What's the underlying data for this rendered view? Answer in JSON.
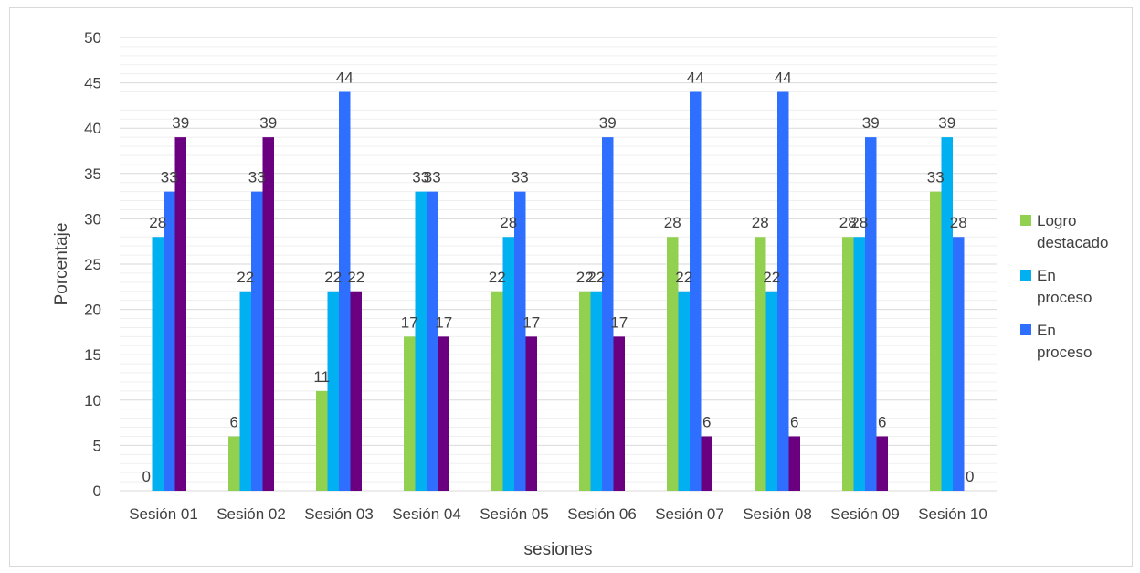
{
  "chart_data": {
    "type": "bar",
    "title": "",
    "xlabel": "sesiones",
    "ylabel": "Porcentaje",
    "ylim": [
      0,
      50
    ],
    "yticks": [
      0,
      5,
      10,
      15,
      20,
      25,
      30,
      35,
      40,
      45,
      50
    ],
    "grid": true,
    "legend_position": "right",
    "categories": [
      "Sesión 01",
      "Sesión 02",
      "Sesión 03",
      "Sesión 04",
      "Sesión 05",
      "Sesión 06",
      "Sesión 07",
      "Sesión 08",
      "Sesión 09",
      "Sesión 10"
    ],
    "series": [
      {
        "name": "Logro destacado",
        "color": "#92d050",
        "values": [
          0,
          6,
          11,
          17,
          22,
          22,
          28,
          28,
          28,
          33
        ],
        "legend": [
          "Logro",
          "destacado"
        ]
      },
      {
        "name": "En proceso",
        "color": "#00b0f0",
        "values": [
          28,
          22,
          22,
          33,
          28,
          22,
          22,
          22,
          28,
          39
        ],
        "legend": [
          "En",
          "proceso"
        ]
      },
      {
        "name": "En proceso",
        "color": "#2f6fff",
        "values": [
          33,
          33,
          44,
          33,
          33,
          39,
          44,
          44,
          39,
          28
        ],
        "legend": [
          "En",
          "proceso"
        ]
      },
      {
        "name": "",
        "color": "#6a0080",
        "values": [
          39,
          39,
          22,
          17,
          17,
          17,
          6,
          6,
          6,
          0
        ],
        "legend": []
      }
    ]
  }
}
